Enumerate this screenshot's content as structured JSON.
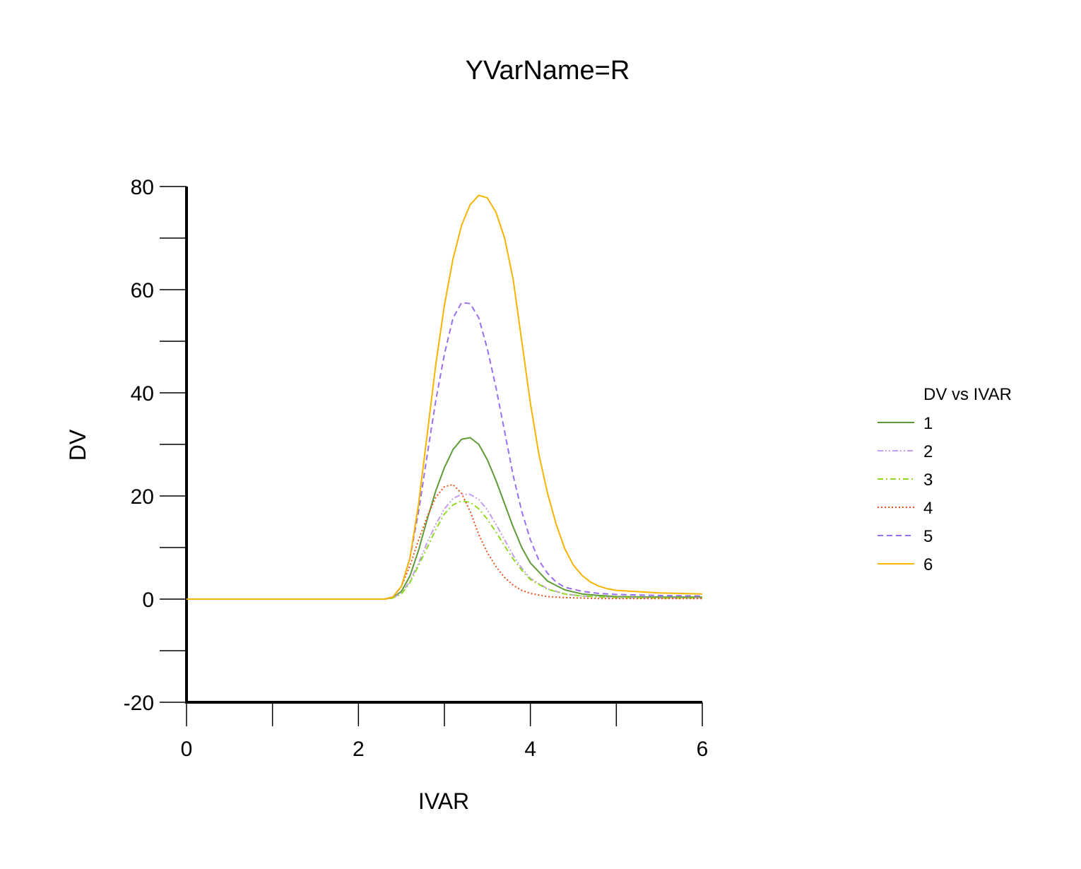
{
  "chart_data": {
    "type": "line",
    "title": "YVarName=R",
    "xlabel": "IVAR",
    "ylabel": "DV",
    "xlim": [
      0,
      6
    ],
    "ylim": [
      -20,
      80
    ],
    "xticks": [
      0,
      2,
      4,
      6
    ],
    "yticks": [
      -20,
      0,
      20,
      40,
      60,
      80
    ],
    "x_minor_step": 1,
    "y_minor_step": 10,
    "grid": false,
    "legend": {
      "title": "DV vs IVAR",
      "position": "right"
    },
    "series": [
      {
        "name": "1",
        "color": "#5e9a36",
        "dash": "solid",
        "x": [
          0,
          2.3,
          2.4,
          2.5,
          2.6,
          2.7,
          2.8,
          2.9,
          3.0,
          3.1,
          3.2,
          3.3,
          3.4,
          3.5,
          3.6,
          3.7,
          3.8,
          3.9,
          4.0,
          4.2,
          4.4,
          4.6,
          4.8,
          5.0,
          5.5,
          6.0
        ],
        "y": [
          0,
          0,
          0.3,
          1.5,
          4.5,
          9.5,
          15.5,
          21,
          25.5,
          29,
          31,
          31.3,
          30,
          27,
          23,
          18.5,
          14,
          10,
          7,
          3.5,
          1.8,
          1.0,
          0.7,
          0.5,
          0.4,
          0.4
        ]
      },
      {
        "name": "2",
        "color": "#c49cf0",
        "dash": "dashdotdot",
        "x": [
          0,
          2.3,
          2.4,
          2.5,
          2.6,
          2.7,
          2.8,
          2.9,
          3.0,
          3.1,
          3.2,
          3.3,
          3.4,
          3.5,
          3.6,
          3.7,
          3.8,
          3.9,
          4.0,
          4.2,
          4.4,
          4.6,
          4.8,
          5.0,
          5.5,
          6.0
        ],
        "y": [
          0,
          0,
          0.2,
          1.2,
          3.5,
          7,
          11,
          14.5,
          17.5,
          19.5,
          20.3,
          20.3,
          19.3,
          17.3,
          14.5,
          11.5,
          8.5,
          6,
          4,
          2,
          1.0,
          0.6,
          0.4,
          0.3,
          0.2,
          0.2
        ]
      },
      {
        "name": "3",
        "color": "#8fdc1f",
        "dash": "dashdot",
        "x": [
          0,
          2.3,
          2.4,
          2.5,
          2.6,
          2.7,
          2.8,
          2.9,
          3.0,
          3.1,
          3.2,
          3.3,
          3.4,
          3.5,
          3.6,
          3.7,
          3.8,
          3.9,
          4.0,
          4.2,
          4.4,
          4.6,
          4.8,
          5.0,
          5.5,
          6.0
        ],
        "y": [
          0,
          0,
          0.2,
          1.0,
          3.2,
          6.5,
          10,
          13.5,
          16.5,
          18.3,
          19,
          18.8,
          17.5,
          15.5,
          13,
          10.3,
          7.8,
          5.6,
          3.8,
          1.9,
          1.0,
          0.6,
          0.4,
          0.3,
          0.2,
          0.2
        ]
      },
      {
        "name": "4",
        "color": "#e8521a",
        "dash": "dotted",
        "x": [
          0,
          2.3,
          2.4,
          2.5,
          2.6,
          2.7,
          2.8,
          2.9,
          3.0,
          3.1,
          3.2,
          3.3,
          3.4,
          3.5,
          3.6,
          3.7,
          3.8,
          3.9,
          4.0,
          4.2,
          4.4,
          4.6,
          4.8,
          5.0,
          5.5,
          6.0
        ],
        "y": [
          0,
          0,
          0.4,
          2.5,
          6.5,
          11.5,
          16,
          19.8,
          21.8,
          22.2,
          20.5,
          17,
          12.5,
          9,
          6.3,
          4.2,
          2.7,
          1.7,
          1.1,
          0.5,
          0.3,
          0.2,
          0.1,
          0.1,
          0.1,
          0.1
        ]
      },
      {
        "name": "5",
        "color": "#9a6ef0",
        "dash": "dashed",
        "x": [
          0,
          2.3,
          2.4,
          2.5,
          2.6,
          2.7,
          2.8,
          2.9,
          3.0,
          3.1,
          3.2,
          3.3,
          3.4,
          3.5,
          3.6,
          3.7,
          3.8,
          3.9,
          4.0,
          4.1,
          4.2,
          4.3,
          4.4,
          4.6,
          4.8,
          5.0,
          5.5,
          6.0
        ],
        "y": [
          0,
          0,
          0.4,
          2.5,
          8,
          17,
          28,
          38.5,
          47.5,
          54.5,
          57.5,
          57.3,
          54.5,
          48.5,
          41,
          32.5,
          24,
          17,
          11.5,
          7.5,
          5,
          3.3,
          2.3,
          1.5,
          1.1,
          0.9,
          0.7,
          0.6
        ]
      },
      {
        "name": "6",
        "color": "#f5b400",
        "dash": "solid",
        "x": [
          0,
          2.3,
          2.4,
          2.5,
          2.6,
          2.7,
          2.8,
          2.9,
          3.0,
          3.1,
          3.2,
          3.3,
          3.4,
          3.5,
          3.6,
          3.7,
          3.8,
          3.9,
          4.0,
          4.1,
          4.2,
          4.3,
          4.4,
          4.5,
          4.6,
          4.7,
          4.8,
          4.9,
          5.0,
          5.5,
          6.0
        ],
        "y": [
          0,
          0,
          0.4,
          2.5,
          8,
          18.5,
          32,
          45.5,
          57,
          66,
          72.5,
          76.5,
          78.3,
          77.8,
          75,
          70,
          62,
          50,
          38,
          28,
          20.5,
          14.5,
          9.8,
          6.6,
          4.6,
          3.3,
          2.5,
          2.0,
          1.7,
          1.2,
          1.0
        ]
      }
    ]
  }
}
